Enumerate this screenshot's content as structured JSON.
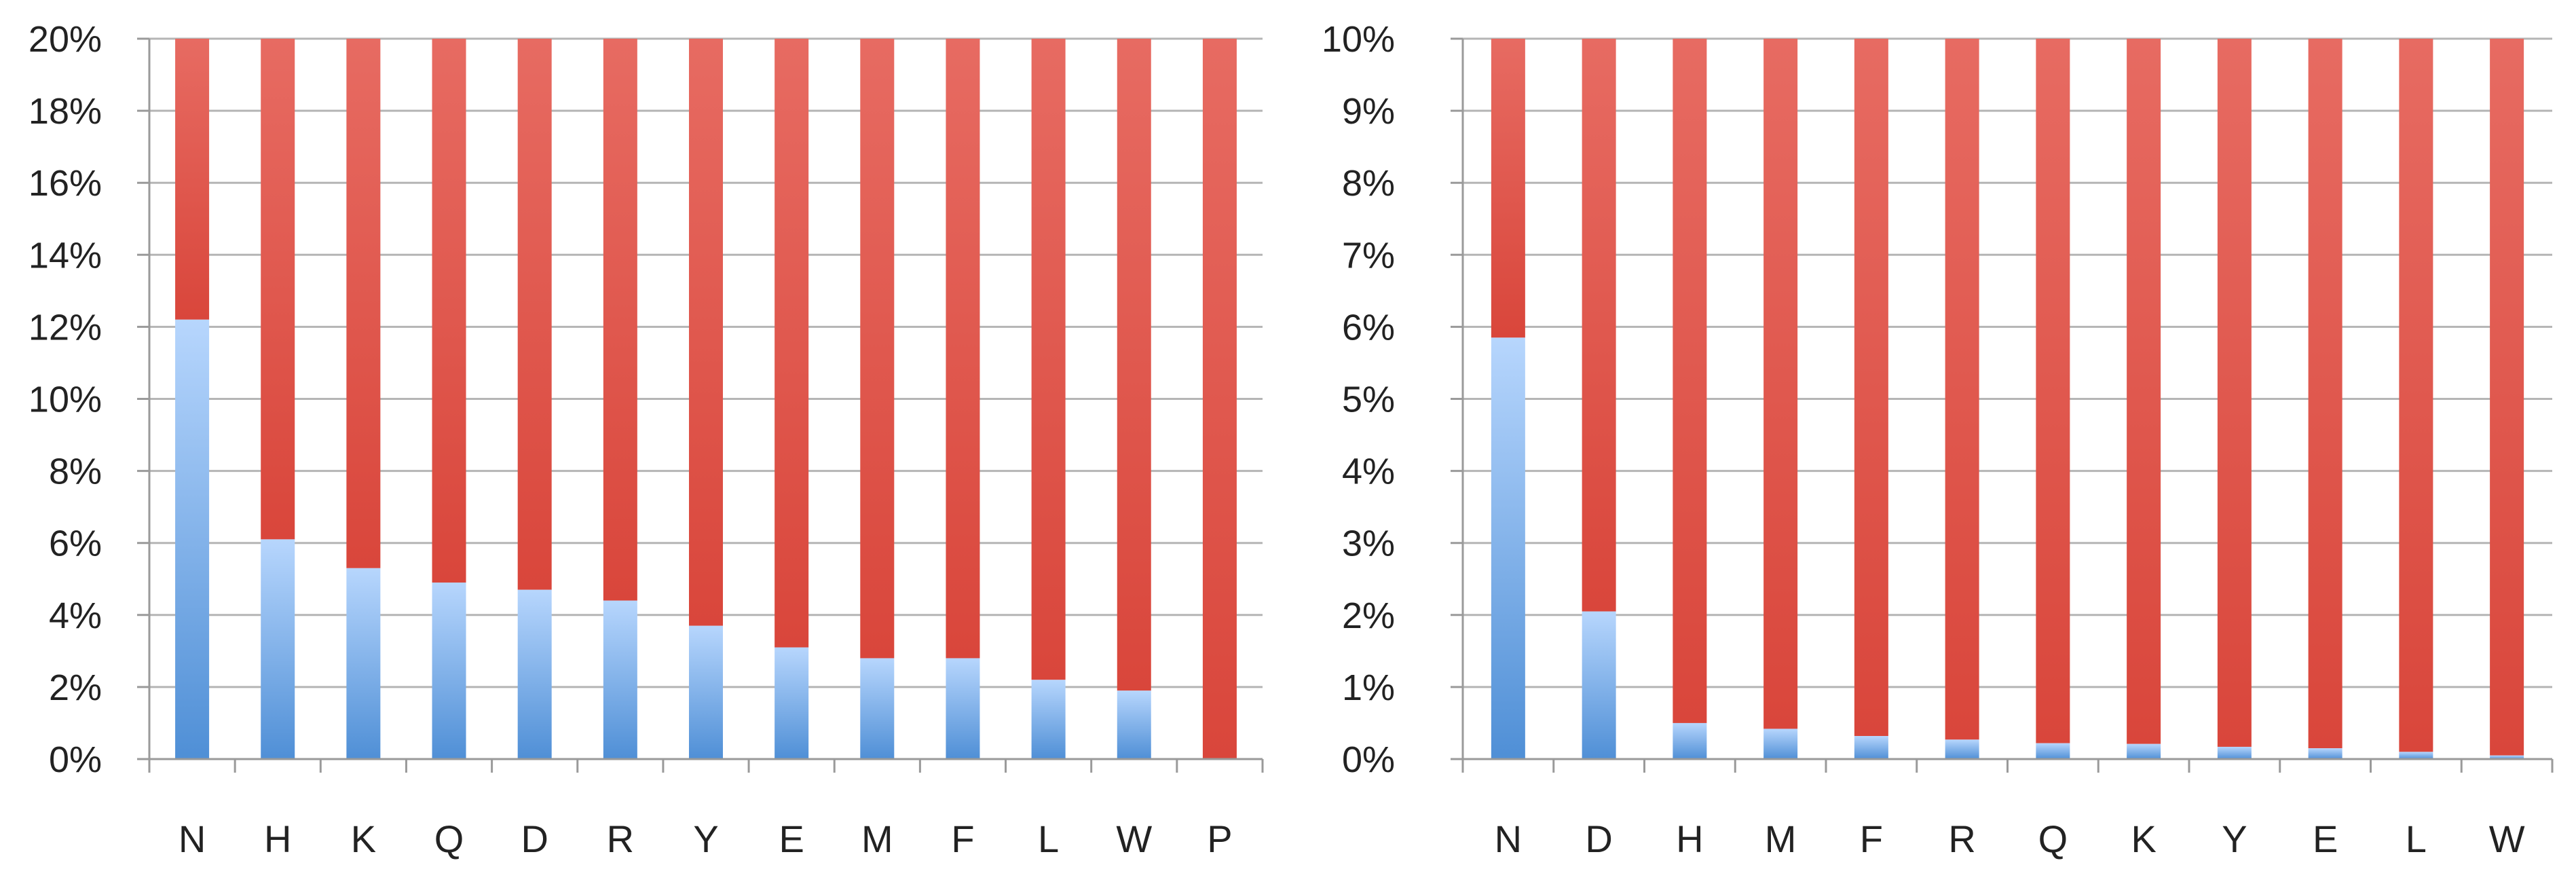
{
  "chart_data": [
    {
      "type": "bar",
      "stacked": true,
      "categories": [
        "N",
        "H",
        "K",
        "Q",
        "D",
        "R",
        "Y",
        "E",
        "M",
        "F",
        "L",
        "W",
        "P"
      ],
      "series": [
        {
          "values": [
            12.2,
            6.1,
            5.3,
            4.9,
            4.7,
            4.4,
            3.7,
            3.1,
            2.8,
            2.8,
            2.2,
            1.9,
            0.0
          ]
        },
        {
          "values": [
            7.8,
            13.9,
            14.7,
            15.1,
            15.3,
            15.6,
            16.3,
            16.9,
            17.2,
            17.2,
            17.8,
            18.1,
            20.0
          ]
        }
      ],
      "ylim": [
        0,
        20
      ],
      "ytick_step": 2,
      "yticks": [
        "0%",
        "2%",
        "4%",
        "6%",
        "8%",
        "10%",
        "12%",
        "14%",
        "16%",
        "18%",
        "20%"
      ],
      "grid": true,
      "colors": {
        "lower": "#5b9bd5",
        "lower_light": "#b3d4fc",
        "upper": "#dc5a4e",
        "upper_light": "#e8706a"
      }
    },
    {
      "type": "bar",
      "stacked": true,
      "categories": [
        "N",
        "D",
        "H",
        "M",
        "F",
        "R",
        "Q",
        "K",
        "Y",
        "E",
        "L",
        "W"
      ],
      "series": [
        {
          "values": [
            5.85,
            2.05,
            0.5,
            0.42,
            0.32,
            0.27,
            0.22,
            0.21,
            0.17,
            0.15,
            0.1,
            0.05
          ]
        },
        {
          "values": [
            4.15,
            7.95,
            9.5,
            9.58,
            9.68,
            9.73,
            9.78,
            9.79,
            9.83,
            9.85,
            9.9,
            9.95
          ]
        }
      ],
      "ylim": [
        0,
        10
      ],
      "ytick_step": 1,
      "yticks": [
        "0%",
        "1%",
        "2%",
        "3%",
        "4%",
        "5%",
        "6%",
        "7%",
        "8%",
        "9%",
        "10%"
      ],
      "grid": true,
      "colors": {
        "lower": "#5b9bd5",
        "lower_light": "#b3d4fc",
        "upper": "#dc5a4e",
        "upper_light": "#e8706a"
      }
    }
  ]
}
